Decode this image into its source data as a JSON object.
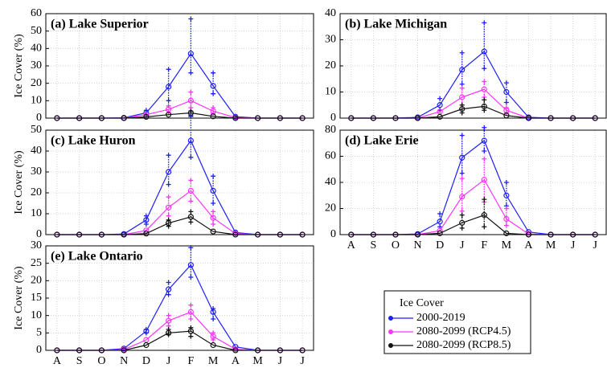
{
  "chart_data": [
    {
      "type": "line",
      "title": "(a) Lake Superior",
      "ylabel": "Ice Cover (%)",
      "ylim": [
        0,
        60
      ],
      "yticks": [
        0,
        10,
        20,
        30,
        40,
        50,
        60
      ],
      "grid": true,
      "series": [
        {
          "color": "#1f1fff",
          "values": [
            0,
            0,
            0,
            0.2,
            3,
            18,
            37,
            18.5,
            0.8,
            0,
            0,
            0
          ],
          "lower": [
            null,
            null,
            null,
            null,
            2,
            10,
            26,
            14,
            null,
            null,
            null,
            null
          ],
          "upper": [
            null,
            null,
            null,
            null,
            4.5,
            28,
            57,
            26,
            null,
            null,
            null,
            null
          ]
        },
        {
          "color": "#ff33ff",
          "values": [
            0,
            0,
            0,
            0,
            2,
            5,
            10,
            4,
            0.3,
            0,
            0,
            0
          ],
          "lower": [
            null,
            null,
            null,
            null,
            null,
            3,
            6,
            2.5,
            null,
            null,
            null,
            null
          ],
          "upper": [
            null,
            null,
            null,
            null,
            null,
            7,
            15,
            6,
            null,
            null,
            null,
            null
          ]
        },
        {
          "color": "#111111",
          "values": [
            0,
            0,
            0,
            0,
            0.7,
            2,
            3,
            1,
            0,
            0,
            0,
            0
          ],
          "lower": [
            null,
            null,
            null,
            null,
            null,
            null,
            1,
            null,
            null,
            null,
            null,
            null
          ],
          "upper": [
            null,
            null,
            null,
            null,
            null,
            null,
            4,
            null,
            null,
            null,
            null,
            null
          ]
        }
      ]
    },
    {
      "type": "line",
      "title": "(b) Lake Michigan",
      "ylim": [
        0,
        40
      ],
      "yticks": [
        0,
        10,
        20,
        30,
        40
      ],
      "grid": true,
      "series": [
        {
          "color": "#1f1fff",
          "values": [
            0,
            0,
            0,
            0.3,
            5,
            18.5,
            25.5,
            10,
            0.3,
            0,
            0,
            0
          ],
          "lower": [
            null,
            null,
            null,
            null,
            3,
            13,
            19,
            6,
            null,
            null,
            null,
            null
          ],
          "upper": [
            null,
            null,
            null,
            null,
            7.5,
            25,
            36.5,
            13.5,
            null,
            null,
            null,
            null
          ]
        },
        {
          "color": "#ff33ff",
          "values": [
            0,
            0,
            0,
            0,
            2.5,
            8,
            11,
            3,
            0,
            0,
            0,
            0
          ],
          "lower": [
            null,
            null,
            null,
            null,
            null,
            5,
            8,
            2,
            null,
            null,
            null,
            null
          ],
          "upper": [
            null,
            null,
            null,
            null,
            null,
            11.5,
            14,
            4,
            null,
            null,
            null,
            null
          ]
        },
        {
          "color": "#111111",
          "values": [
            0,
            0,
            0,
            0,
            0.5,
            3.5,
            4.5,
            1,
            0,
            0,
            0,
            0
          ],
          "lower": [
            null,
            null,
            null,
            null,
            null,
            2,
            3,
            null,
            null,
            null,
            null,
            null
          ],
          "upper": [
            null,
            null,
            null,
            null,
            null,
            5,
            7,
            null,
            null,
            null,
            null,
            null
          ]
        }
      ]
    },
    {
      "type": "line",
      "title": "(c) Lake Huron",
      "ylabel": "Ice Cover (%)",
      "ylim": [
        0,
        50
      ],
      "yticks": [
        0,
        10,
        20,
        30,
        40,
        50
      ],
      "grid": true,
      "series": [
        {
          "color": "#1f1fff",
          "values": [
            0,
            0,
            0,
            0.3,
            7,
            30,
            45,
            21,
            1,
            0,
            0,
            0
          ],
          "lower": [
            null,
            null,
            null,
            null,
            5,
            24,
            37,
            15,
            null,
            null,
            null,
            null
          ],
          "upper": [
            null,
            null,
            null,
            null,
            9,
            38,
            57,
            28,
            null,
            null,
            null,
            null
          ]
        },
        {
          "color": "#ff33ff",
          "values": [
            0,
            0,
            0,
            0,
            2,
            13,
            21,
            8,
            0.5,
            0,
            0,
            0
          ],
          "lower": [
            null,
            null,
            null,
            null,
            null,
            9,
            16,
            5,
            null,
            null,
            null,
            null
          ],
          "upper": [
            null,
            null,
            null,
            null,
            null,
            18,
            26,
            11,
            null,
            null,
            null,
            null
          ]
        },
        {
          "color": "#111111",
          "values": [
            0,
            0,
            0,
            0,
            0.5,
            5.5,
            8.5,
            1.5,
            0,
            0,
            0,
            0
          ],
          "lower": [
            null,
            null,
            null,
            null,
            null,
            4,
            6,
            null,
            null,
            null,
            null,
            null
          ],
          "upper": [
            null,
            null,
            null,
            null,
            null,
            7,
            11,
            null,
            null,
            null,
            null,
            null
          ]
        }
      ]
    },
    {
      "type": "line",
      "title": "(d) Lake Erie",
      "ylim": [
        0,
        80
      ],
      "yticks": [
        0,
        20,
        40,
        60,
        80
      ],
      "grid": true,
      "categories": [
        "A",
        "S",
        "O",
        "N",
        "D",
        "J",
        "F",
        "M",
        "A",
        "M",
        "J",
        "J"
      ],
      "series": [
        {
          "color": "#1f1fff",
          "values": [
            0,
            0,
            0,
            0.5,
            10,
            59,
            72,
            30,
            2,
            0,
            0,
            0
          ],
          "lower": [
            null,
            null,
            null,
            null,
            6,
            47,
            64,
            22,
            null,
            null,
            null,
            null
          ],
          "upper": [
            null,
            null,
            null,
            null,
            16,
            76,
            82,
            40,
            null,
            null,
            null,
            null
          ]
        },
        {
          "color": "#ff33ff",
          "values": [
            0,
            0,
            0,
            0,
            3,
            29,
            42,
            12,
            0.5,
            0,
            0,
            0
          ],
          "lower": [
            null,
            null,
            null,
            null,
            null,
            18,
            25,
            7,
            null,
            null,
            null,
            null
          ],
          "upper": [
            null,
            null,
            null,
            null,
            null,
            43,
            58,
            20,
            null,
            null,
            null,
            null
          ]
        },
        {
          "color": "#111111",
          "values": [
            0,
            0,
            0,
            0,
            1,
            9,
            15,
            1,
            0,
            0,
            0,
            0
          ],
          "lower": [
            null,
            null,
            null,
            null,
            null,
            5,
            6,
            null,
            null,
            null,
            null,
            null
          ],
          "upper": [
            null,
            null,
            null,
            null,
            null,
            15,
            27,
            null,
            null,
            null,
            null,
            null
          ]
        }
      ]
    },
    {
      "type": "line",
      "title": "(e) Lake Ontario",
      "ylabel": "Ice Cover (%)",
      "ylim": [
        0,
        30
      ],
      "yticks": [
        0,
        5,
        10,
        15,
        20,
        25,
        30
      ],
      "grid": true,
      "categories": [
        "A",
        "S",
        "O",
        "N",
        "D",
        "J",
        "F",
        "M",
        "A",
        "M",
        "J",
        "J"
      ],
      "legend_title": "Ice Cover",
      "series": [
        {
          "name": "2000-2019",
          "color": "#1f1fff",
          "values": [
            0,
            0,
            0,
            0.5,
            5.5,
            17.5,
            24.5,
            11,
            1,
            0,
            0,
            0
          ],
          "lower": [
            null,
            null,
            null,
            null,
            5,
            16,
            21,
            9,
            null,
            null,
            null,
            null
          ],
          "upper": [
            null,
            null,
            null,
            null,
            6,
            19.5,
            29.5,
            12,
            null,
            null,
            null,
            null
          ]
        },
        {
          "name": "2080-2099 (RCP4.5)",
          "color": "#ff33ff",
          "values": [
            0,
            0,
            0,
            0.2,
            3,
            8.5,
            11,
            4,
            0.3,
            0,
            0,
            0
          ],
          "lower": [
            null,
            null,
            null,
            null,
            null,
            7,
            9,
            3,
            null,
            null,
            null,
            null
          ],
          "upper": [
            null,
            null,
            null,
            null,
            null,
            10,
            13,
            5,
            null,
            null,
            null,
            null
          ]
        },
        {
          "name": "2080-2099 (RCP8.5)",
          "color": "#111111",
          "values": [
            0,
            0,
            0,
            0,
            1.5,
            5,
            5.5,
            1.5,
            0,
            0,
            0,
            0
          ],
          "lower": [
            null,
            null,
            null,
            null,
            null,
            4.5,
            4,
            null,
            null,
            null,
            null,
            null
          ],
          "upper": [
            null,
            null,
            null,
            null,
            null,
            6,
            6.5,
            null,
            null,
            null,
            null,
            null
          ]
        }
      ]
    }
  ]
}
